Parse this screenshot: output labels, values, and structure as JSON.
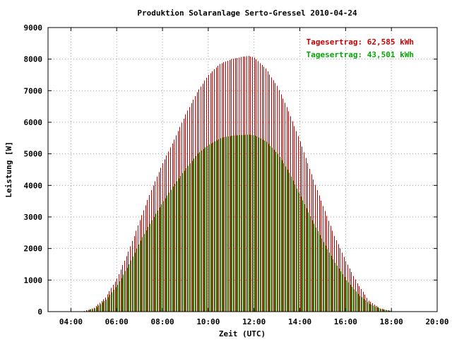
{
  "chart_data": {
    "type": "bar",
    "title": "Produktion Solaranlage Serto-Gressel 2010-04-24",
    "xlabel": "Zeit (UTC)",
    "ylabel": "Leistung [W]",
    "xlim": [
      3,
      20
    ],
    "ylim": [
      0,
      9000
    ],
    "grid": true,
    "legend_position": "top-right",
    "x_ticks": [
      {
        "value": 4,
        "label": "04:00"
      },
      {
        "value": 6,
        "label": "06:00"
      },
      {
        "value": 8,
        "label": "08:00"
      },
      {
        "value": 10,
        "label": "10:00"
      },
      {
        "value": 12,
        "label": "12:00"
      },
      {
        "value": 14,
        "label": "14:00"
      },
      {
        "value": 16,
        "label": "16:00"
      },
      {
        "value": 18,
        "label": "18:00"
      },
      {
        "value": 20,
        "label": "20:00"
      }
    ],
    "y_ticks": [
      {
        "value": 0,
        "label": "0"
      },
      {
        "value": 1000,
        "label": "1000"
      },
      {
        "value": 2000,
        "label": "2000"
      },
      {
        "value": 3000,
        "label": "3000"
      },
      {
        "value": 4000,
        "label": "4000"
      },
      {
        "value": 5000,
        "label": "5000"
      },
      {
        "value": 6000,
        "label": "6000"
      },
      {
        "value": 7000,
        "label": "7000"
      },
      {
        "value": 8000,
        "label": "8000"
      },
      {
        "value": 9000,
        "label": "9000"
      }
    ],
    "x_hours": [
      4.5,
      5.0,
      5.5,
      6.0,
      6.5,
      7.0,
      7.5,
      8.0,
      8.5,
      9.0,
      9.5,
      10.0,
      10.5,
      11.0,
      11.5,
      11.75,
      12.0,
      12.5,
      13.0,
      13.5,
      14.0,
      14.5,
      15.0,
      15.5,
      16.0,
      16.5,
      17.0,
      17.5,
      18.0,
      18.2
    ],
    "series": [
      {
        "name": "Tagesertrag: 62,585 kWh",
        "color": "#cc0000",
        "values": [
          0,
          120,
          450,
          1050,
          1900,
          2900,
          3850,
          4700,
          5450,
          6250,
          6950,
          7500,
          7850,
          8000,
          8080,
          8100,
          8050,
          7700,
          7150,
          6350,
          5400,
          4350,
          3350,
          2400,
          1600,
          900,
          350,
          100,
          20,
          0
        ]
      },
      {
        "name": "Tagesertrag: 43,501 kWh",
        "color": "#00aa00",
        "values": [
          0,
          100,
          380,
          850,
          1500,
          2250,
          2900,
          3500,
          4050,
          4550,
          5000,
          5300,
          5500,
          5580,
          5600,
          5610,
          5580,
          5380,
          5000,
          4400,
          3650,
          2900,
          2200,
          1550,
          1000,
          560,
          250,
          80,
          15,
          0
        ]
      }
    ]
  }
}
